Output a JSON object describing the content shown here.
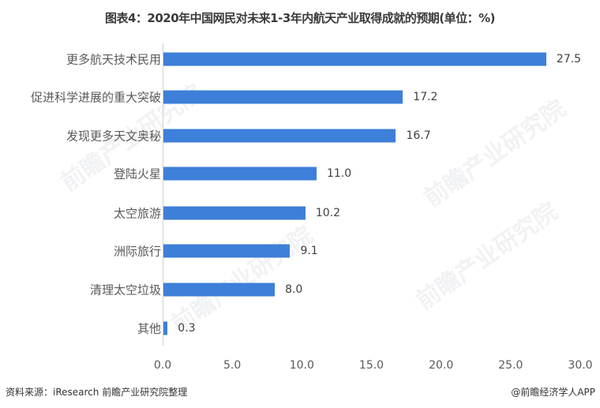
{
  "title": "图表4：2020年中国网民对未来1-3年内航天产业取得成就的预期(单位：%)",
  "footer": {
    "source": "资料来源：iResearch 前瞻产业研究院整理",
    "credit": "@前瞻经济学人APP"
  },
  "watermark": "前瞻产业研究院",
  "colors": {
    "bar": "#3d7fd9",
    "axis": "#d0d0d0",
    "text": "#595959"
  },
  "chart_data": {
    "type": "bar",
    "orientation": "horizontal",
    "title": "图表4：2020年中国网民对未来1-3年内航天产业取得成就的预期(单位：%)",
    "xlabel": "",
    "ylabel": "",
    "categories": [
      "更多航天技术民用",
      "促进科学进展的重大突破",
      "发现更多天文奥秘",
      "登陆火星",
      "太空旅游",
      "洲际旅行",
      "清理太空垃圾",
      "其他"
    ],
    "values": [
      27.5,
      17.2,
      16.7,
      11.0,
      10.2,
      9.1,
      8.0,
      0.3
    ],
    "value_labels": [
      "27.5",
      "17.2",
      "16.7",
      "11.0",
      "10.2",
      "9.1",
      "8.0",
      "0.3"
    ],
    "xlim": [
      0,
      30
    ],
    "xticks": [
      "0.0",
      "5.0",
      "10.0",
      "15.0",
      "20.0",
      "25.0",
      "30.0"
    ],
    "grid": false,
    "legend": null
  }
}
